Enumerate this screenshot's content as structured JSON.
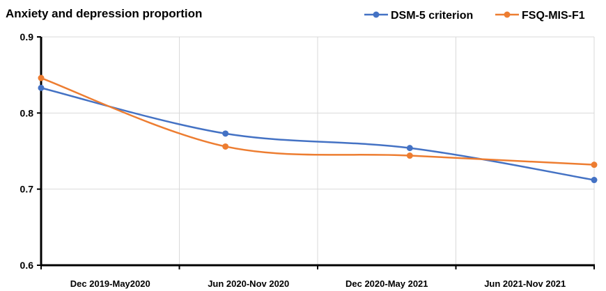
{
  "chart_data": {
    "type": "line",
    "title": "Anxiety and depression proportion",
    "xlabel": "",
    "ylabel": "",
    "categories": [
      "Dec 2019-May2020",
      "Jun 2020-Nov 2020",
      "Dec 2020-May 2021",
      "Jun 2021-Nov 2021"
    ],
    "ylim": [
      0.6,
      0.9
    ],
    "yticks": [
      "0.6",
      "0.7",
      "0.8",
      "0.9"
    ],
    "grid": true,
    "legend_position": "top-right",
    "series": [
      {
        "name": "DSM-5 criterion",
        "color": "#4472C4",
        "values": [
          0.833,
          0.773,
          0.754,
          0.712
        ]
      },
      {
        "name": "FSQ-MIS-F1",
        "color": "#ED7D31",
        "values": [
          0.846,
          0.756,
          0.744,
          0.732
        ]
      }
    ]
  }
}
